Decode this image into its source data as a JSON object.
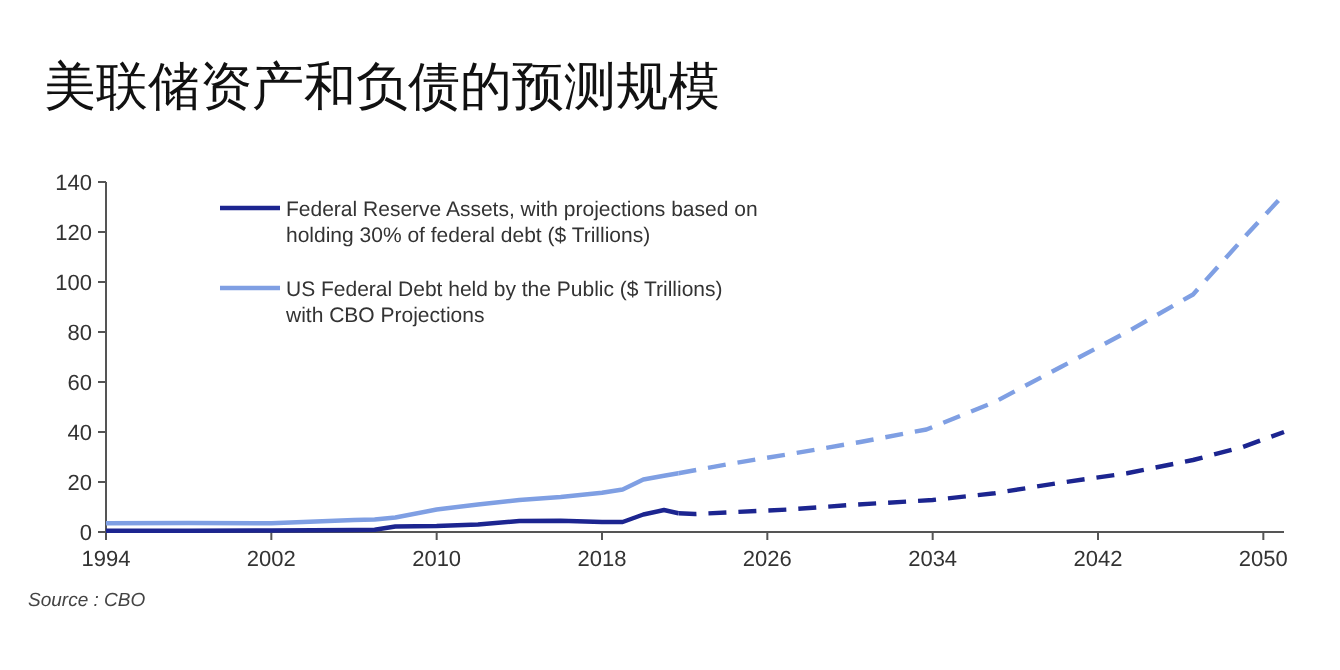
{
  "chart_data": {
    "type": "line",
    "title": "美联储资产和负债的预测规模",
    "x": [
      1994,
      1998,
      2002,
      2006,
      2007,
      2008,
      2010,
      2012,
      2014,
      2016,
      2018,
      2019,
      2020,
      2021,
      2021.7
    ],
    "series": [
      {
        "name": "Federal Reserve Assets, with projections based on holding 30% of federal debt ($ Trillions)",
        "color": "#1c2590",
        "values": [
          0.5,
          0.5,
          0.6,
          0.8,
          0.9,
          2.2,
          2.4,
          3,
          4.4,
          4.5,
          4,
          4,
          7,
          8.8,
          7.5
        ]
      },
      {
        "name": "US Federal Debt held by the Public ($ Trillions) with CBO Projections",
        "color": "#7f9fe3",
        "values": [
          3.5,
          3.6,
          3.5,
          4.8,
          5,
          5.8,
          9,
          11,
          12.8,
          14,
          15.7,
          17,
          21,
          22.5,
          23.5
        ]
      },
      {
        "color": "#1c2590",
        "line_style": "dashed",
        "x": [
          2021.7,
          2022.5,
          2027,
          2030,
          2034,
          2037,
          2040,
          2043.4,
          2046.6,
          2049,
          2051
        ],
        "values": [
          7.5,
          7.2,
          9,
          10.8,
          12.8,
          15.5,
          19.5,
          23.5,
          28.8,
          34,
          40
        ]
      },
      {
        "color": "#7f9fe3",
        "line_style": "dashed",
        "x": [
          2021.7,
          2024,
          2027.3,
          2030.5,
          2033.7,
          2037,
          2040.2,
          2043.4,
          2046.6,
          2049.2,
          2051
        ],
        "values": [
          23.5,
          27,
          31.5,
          36,
          41,
          52,
          66,
          80,
          95,
          119,
          135
        ]
      }
    ],
    "xlim": [
      1994,
      2051
    ],
    "xticks": [
      1994,
      2002,
      2010,
      2018,
      2026,
      2034,
      2042,
      2050
    ],
    "ylim": [
      0,
      140
    ],
    "yticks": [
      0,
      20,
      40,
      60,
      80,
      100,
      120,
      140
    ],
    "grid": false,
    "legend": "top left",
    "line_style": "solid",
    "annotations": [
      "Source : CBO"
    ]
  }
}
